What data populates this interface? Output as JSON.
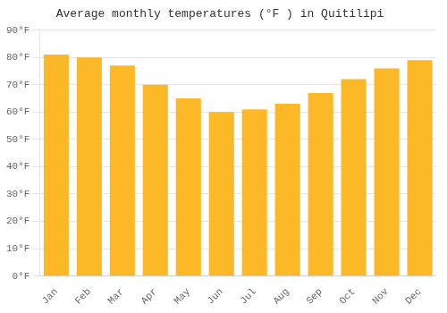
{
  "chart_data": {
    "type": "bar",
    "title": "Average monthly temperatures (°F ) in Quitilipi",
    "categories": [
      "Jan",
      "Feb",
      "Mar",
      "Apr",
      "May",
      "Jun",
      "Jul",
      "Aug",
      "Sep",
      "Oct",
      "Nov",
      "Dec"
    ],
    "values": [
      81,
      80,
      77,
      70,
      65,
      60,
      61,
      63,
      67,
      72,
      76,
      79
    ],
    "color": "#FDB827",
    "ylim": [
      0,
      90
    ],
    "yticks": [
      {
        "value": 0,
        "label": "0°F"
      },
      {
        "value": 10,
        "label": "10°F"
      },
      {
        "value": 20,
        "label": "20°F"
      },
      {
        "value": 30,
        "label": "30°F"
      },
      {
        "value": 40,
        "label": "40°F"
      },
      {
        "value": 50,
        "label": "50°F"
      },
      {
        "value": 60,
        "label": "60°F"
      },
      {
        "value": 70,
        "label": "70°F"
      },
      {
        "value": 80,
        "label": "80°F"
      },
      {
        "value": 90,
        "label": "90°F"
      }
    ],
    "grid": true
  }
}
